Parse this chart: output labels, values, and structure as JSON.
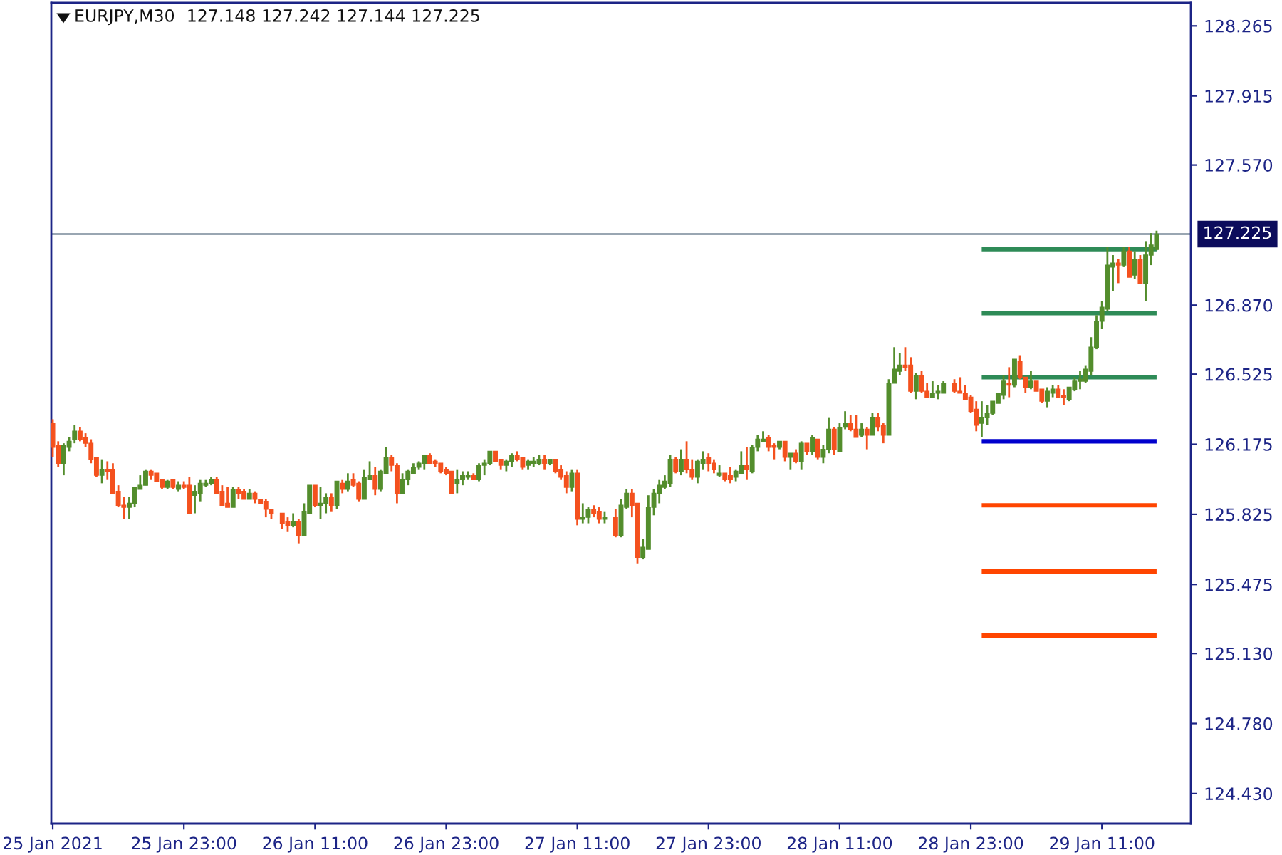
{
  "chart_data": {
    "type": "candlestick",
    "title": "EURJPY,M30",
    "annotations": [
      "127.148 127.242 127.144 127.225"
    ],
    "series": [
      {
        "x": [
          "2021-01-25T11:00",
          "2021-01-25T11:30",
          "2021-01-25T12:00",
          "2021-01-25T12:30",
          "2021-01-25T13:00",
          "2021-01-25T13:30",
          "2021-01-25T14:00",
          "2021-01-25T14:30",
          "2021-01-25T15:00",
          "2021-01-25T15:30",
          "2021-01-25T16:00",
          "2021-01-25T16:30",
          "2021-01-25T17:00",
          "2021-01-25T17:30",
          "2021-01-25T18:00",
          "2021-01-25T18:30",
          "2021-01-25T19:00",
          "2021-01-25T19:30",
          "2021-01-25T20:00",
          "2021-01-25T20:30",
          "2021-01-25T21:00",
          "2021-01-25T21:30",
          "2021-01-25T22:00",
          "2021-01-25T22:30",
          "2021-01-25T23:00",
          "2021-01-25T23:30",
          "2021-01-26T00:00",
          "2021-01-26T00:30",
          "2021-01-26T01:00",
          "2021-01-26T01:30",
          "2021-01-26T02:00",
          "2021-01-26T02:30",
          "2021-01-26T03:00",
          "2021-01-26T03:30",
          "2021-01-26T04:00",
          "2021-01-26T04:30",
          "2021-01-26T05:00",
          "2021-01-26T05:30",
          "2021-01-26T06:00",
          "2021-01-26T06:30",
          "2021-01-26T07:00",
          "2021-01-26T08:00",
          "2021-01-26T08:30",
          "2021-01-26T09:00",
          "2021-01-26T09:30",
          "2021-01-26T10:00",
          "2021-01-26T10:30",
          "2021-01-26T11:00",
          "2021-01-26T11:30",
          "2021-01-26T12:00",
          "2021-01-26T12:30",
          "2021-01-26T13:00",
          "2021-01-26T13:30",
          "2021-01-26T14:00",
          "2021-01-26T14:30",
          "2021-01-26T15:00",
          "2021-01-26T15:30",
          "2021-01-26T16:00",
          "2021-01-26T16:30",
          "2021-01-26T17:00",
          "2021-01-26T17:30",
          "2021-01-26T18:00",
          "2021-01-26T18:30",
          "2021-01-26T19:00",
          "2021-01-26T19:30",
          "2021-01-26T20:00",
          "2021-01-26T20:30",
          "2021-01-26T21:00",
          "2021-01-26T21:30",
          "2021-01-26T22:00",
          "2021-01-26T22:30",
          "2021-01-26T23:00",
          "2021-01-26T23:30",
          "2021-01-27T00:00",
          "2021-01-27T00:30",
          "2021-01-27T01:00",
          "2021-01-27T01:30",
          "2021-01-27T02:00",
          "2021-01-27T02:30",
          "2021-01-27T03:00",
          "2021-01-27T03:30",
          "2021-01-27T04:00",
          "2021-01-27T04:30",
          "2021-01-27T05:00",
          "2021-01-27T05:30",
          "2021-01-27T06:00",
          "2021-01-27T06:30",
          "2021-01-27T07:00",
          "2021-01-27T07:30",
          "2021-01-27T08:00",
          "2021-01-27T08:30",
          "2021-01-27T09:00",
          "2021-01-27T09:30",
          "2021-01-27T10:00",
          "2021-01-27T10:30",
          "2021-01-27T11:00",
          "2021-01-27T11:30",
          "2021-01-27T12:00",
          "2021-01-27T12:30",
          "2021-01-27T13:00",
          "2021-01-27T13:30",
          "2021-01-27T14:30",
          "2021-01-27T15:00",
          "2021-01-27T15:30",
          "2021-01-27T16:00",
          "2021-01-27T16:30",
          "2021-01-27T17:00",
          "2021-01-27T17:30",
          "2021-01-27T18:00",
          "2021-01-27T18:30",
          "2021-01-27T19:00",
          "2021-01-27T19:30",
          "2021-01-27T20:00",
          "2021-01-27T20:30",
          "2021-01-27T21:00",
          "2021-01-27T21:30",
          "2021-01-27T22:00",
          "2021-01-27T22:30",
          "2021-01-27T23:00",
          "2021-01-27T23:30",
          "2021-01-28T00:00",
          "2021-01-28T00:30",
          "2021-01-28T01:00",
          "2021-01-28T01:30",
          "2021-01-28T02:00",
          "2021-01-28T02:30",
          "2021-01-28T03:00",
          "2021-01-28T03:30",
          "2021-01-28T04:00",
          "2021-01-28T04:30",
          "2021-01-28T05:00",
          "2021-01-28T05:30",
          "2021-01-28T06:00",
          "2021-01-28T06:30",
          "2021-01-28T07:00",
          "2021-01-28T07:30",
          "2021-01-28T08:00",
          "2021-01-28T08:30",
          "2021-01-28T09:00",
          "2021-01-28T09:30",
          "2021-01-28T10:00",
          "2021-01-28T10:30",
          "2021-01-28T11:00",
          "2021-01-28T11:30",
          "2021-01-28T12:00",
          "2021-01-28T12:30",
          "2021-01-28T13:00",
          "2021-01-28T13:30",
          "2021-01-28T14:00",
          "2021-01-28T14:30",
          "2021-01-28T15:00",
          "2021-01-28T15:30",
          "2021-01-28T16:00",
          "2021-01-28T16:30",
          "2021-01-28T17:00",
          "2021-01-28T17:30",
          "2021-01-28T18:00",
          "2021-01-28T18:30",
          "2021-01-28T19:00",
          "2021-01-28T19:30",
          "2021-01-28T20:00",
          "2021-01-28T20:30",
          "2021-01-28T21:30",
          "2021-01-28T22:00",
          "2021-01-28T22:30",
          "2021-01-28T23:00",
          "2021-01-28T23:30",
          "2021-01-29T00:00",
          "2021-01-29T00:30",
          "2021-01-29T01:00",
          "2021-01-29T01:30",
          "2021-01-29T02:00",
          "2021-01-29T02:30",
          "2021-01-29T03:00",
          "2021-01-29T03:30",
          "2021-01-29T04:00",
          "2021-01-29T04:30",
          "2021-01-29T05:00",
          "2021-01-29T05:30",
          "2021-01-29T06:00",
          "2021-01-29T06:30",
          "2021-01-29T07:00",
          "2021-01-29T07:30",
          "2021-01-29T08:00",
          "2021-01-29T08:30",
          "2021-01-29T09:00",
          "2021-01-29T09:30",
          "2021-01-29T10:00",
          "2021-01-29T10:30",
          "2021-01-29T11:00",
          "2021-01-29T11:30",
          "2021-01-29T12:00",
          "2021-01-29T12:30",
          "2021-01-29T13:00",
          "2021-01-29T13:30",
          "2021-01-29T14:00",
          "2021-01-29T14:30",
          "2021-01-29T15:00",
          "2021-01-29T15:30",
          "2021-01-29T16:00"
        ],
        "ohlc": [
          [
            126.28,
            126.3,
            126.11,
            126.16
          ],
          [
            126.17,
            126.19,
            126.06,
            126.08
          ],
          [
            126.08,
            126.18,
            126.02,
            126.17
          ],
          [
            126.16,
            126.21,
            126.14,
            126.19
          ],
          [
            126.2,
            126.27,
            126.18,
            126.24
          ],
          [
            126.24,
            126.26,
            126.19,
            126.2
          ],
          [
            126.21,
            126.23,
            126.16,
            126.18
          ],
          [
            126.18,
            126.2,
            126.08,
            126.1
          ],
          [
            126.11,
            126.11,
            126.01,
            126.02
          ],
          [
            126.02,
            126.1,
            125.98,
            126.05
          ],
          [
            126.05,
            126.09,
            126.0,
            126.04
          ],
          [
            126.05,
            126.08,
            125.93,
            125.93
          ],
          [
            125.94,
            125.97,
            125.86,
            125.87
          ],
          [
            125.87,
            125.91,
            125.8,
            125.86
          ],
          [
            125.86,
            125.91,
            125.8,
            125.88
          ],
          [
            125.88,
            125.96,
            125.86,
            125.96
          ],
          [
            125.95,
            126.02,
            125.95,
            125.97
          ],
          [
            125.97,
            126.05,
            125.97,
            126.04
          ],
          [
            126.04,
            126.05,
            126.0,
            126.02
          ],
          [
            126.03,
            126.03,
            125.99,
            125.99
          ],
          [
            126.0,
            126.0,
            125.95,
            125.96
          ],
          [
            125.96,
            126.0,
            125.95,
            125.99
          ],
          [
            126.0,
            126.0,
            125.95,
            125.96
          ],
          [
            125.95,
            125.99,
            125.94,
            125.97
          ],
          [
            125.97,
            125.99,
            125.95,
            125.96
          ],
          [
            125.97,
            126.01,
            125.83,
            125.83
          ],
          [
            125.92,
            125.97,
            125.83,
            125.94
          ],
          [
            125.93,
            126.0,
            125.89,
            125.98
          ],
          [
            125.97,
            126.0,
            125.96,
            125.98
          ],
          [
            125.98,
            126.01,
            125.97,
            126.0
          ],
          [
            126.0,
            126.01,
            125.93,
            125.93
          ],
          [
            125.94,
            125.97,
            125.87,
            125.87
          ],
          [
            125.88,
            125.96,
            125.86,
            125.86
          ],
          [
            125.86,
            125.96,
            125.86,
            125.95
          ],
          [
            125.95,
            125.96,
            125.9,
            125.93
          ],
          [
            125.94,
            125.95,
            125.9,
            125.9
          ],
          [
            125.9,
            125.95,
            125.9,
            125.93
          ],
          [
            125.93,
            125.94,
            125.88,
            125.9
          ],
          [
            125.9,
            125.9,
            125.88,
            125.88
          ],
          [
            125.89,
            125.9,
            125.81,
            125.85
          ],
          [
            125.85,
            125.85,
            125.8,
            125.83
          ],
          [
            125.83,
            125.83,
            125.75,
            125.78
          ],
          [
            125.79,
            125.81,
            125.74,
            125.77
          ],
          [
            125.77,
            125.83,
            125.76,
            125.79
          ],
          [
            125.79,
            125.8,
            125.68,
            125.72
          ],
          [
            125.72,
            125.88,
            125.72,
            125.84
          ],
          [
            125.83,
            125.97,
            125.83,
            125.97
          ],
          [
            125.97,
            125.97,
            125.86,
            125.87
          ],
          [
            125.87,
            125.96,
            125.8,
            125.88
          ],
          [
            125.88,
            125.93,
            125.83,
            125.91
          ],
          [
            125.91,
            125.93,
            125.84,
            125.87
          ],
          [
            125.87,
            125.99,
            125.85,
            125.99
          ],
          [
            125.98,
            126.0,
            125.93,
            125.95
          ],
          [
            125.95,
            126.03,
            125.94,
            125.99
          ],
          [
            126.0,
            126.03,
            125.96,
            125.97
          ],
          [
            125.98,
            125.99,
            125.89,
            125.9
          ],
          [
            125.9,
            126.05,
            125.9,
            126.01
          ],
          [
            126.0,
            126.09,
            126.0,
            126.02
          ],
          [
            126.02,
            126.06,
            125.92,
            125.95
          ],
          [
            125.95,
            126.05,
            125.94,
            126.04
          ],
          [
            126.03,
            126.16,
            126.03,
            126.11
          ],
          [
            126.11,
            126.12,
            126.04,
            126.07
          ],
          [
            126.07,
            126.08,
            125.88,
            125.93
          ],
          [
            125.93,
            126.03,
            125.93,
            126.0
          ],
          [
            126.0,
            126.05,
            125.97,
            126.04
          ],
          [
            126.03,
            126.08,
            126.03,
            126.06
          ],
          [
            126.06,
            126.09,
            126.05,
            126.08
          ],
          [
            126.08,
            126.12,
            126.05,
            126.12
          ],
          [
            126.12,
            126.13,
            126.08,
            126.08
          ],
          [
            126.09,
            126.1,
            126.06,
            126.08
          ],
          [
            126.08,
            126.08,
            126.03,
            126.04
          ],
          [
            126.05,
            126.06,
            126.02,
            126.03
          ],
          [
            126.04,
            126.04,
            125.93,
            125.93
          ],
          [
            125.98,
            126.05,
            125.93,
            126.0
          ],
          [
            126.0,
            126.04,
            125.97,
            126.02
          ],
          [
            126.01,
            126.04,
            126.0,
            126.02
          ],
          [
            126.02,
            126.03,
            126.0,
            126.0
          ],
          [
            126.0,
            126.08,
            125.99,
            126.07
          ],
          [
            126.07,
            126.1,
            126.02,
            126.08
          ],
          [
            126.08,
            126.14,
            126.07,
            126.14
          ],
          [
            126.14,
            126.14,
            126.09,
            126.09
          ],
          [
            126.1,
            126.1,
            126.05,
            126.07
          ],
          [
            126.07,
            126.1,
            126.04,
            126.09
          ],
          [
            126.09,
            126.13,
            126.06,
            126.12
          ],
          [
            126.12,
            126.14,
            126.09,
            126.1
          ],
          [
            126.11,
            126.11,
            126.05,
            126.06
          ],
          [
            126.07,
            126.1,
            126.05,
            126.09
          ],
          [
            126.08,
            126.11,
            126.06,
            126.09
          ],
          [
            126.08,
            126.12,
            126.07,
            126.1
          ],
          [
            126.1,
            126.12,
            126.05,
            126.08
          ],
          [
            126.08,
            126.1,
            126.07,
            126.1
          ],
          [
            126.1,
            126.1,
            126.03,
            126.04
          ],
          [
            126.05,
            126.07,
            126.0,
            126.01
          ],
          [
            126.02,
            126.04,
            125.93,
            125.96
          ],
          [
            125.96,
            126.05,
            125.94,
            126.03
          ],
          [
            126.03,
            126.05,
            125.77,
            125.8
          ],
          [
            125.8,
            125.88,
            125.78,
            125.81
          ],
          [
            125.81,
            125.86,
            125.78,
            125.85
          ],
          [
            125.85,
            125.87,
            125.81,
            125.83
          ],
          [
            125.84,
            125.86,
            125.78,
            125.8
          ],
          [
            125.8,
            125.84,
            125.78,
            125.81
          ],
          [
            125.81,
            125.85,
            125.71,
            125.72
          ],
          [
            125.72,
            125.9,
            125.71,
            125.87
          ],
          [
            125.86,
            125.95,
            125.85,
            125.93
          ],
          [
            125.93,
            125.95,
            125.81,
            125.87
          ],
          [
            125.88,
            125.88,
            125.58,
            125.61
          ],
          [
            125.61,
            125.7,
            125.6,
            125.66
          ],
          [
            125.65,
            125.92,
            125.65,
            125.86
          ],
          [
            125.86,
            125.95,
            125.82,
            125.93
          ],
          [
            125.93,
            126.0,
            125.88,
            125.97
          ],
          [
            125.96,
            126.02,
            125.95,
            125.99
          ],
          [
            125.98,
            126.12,
            125.96,
            126.1
          ],
          [
            126.1,
            126.11,
            126.03,
            126.04
          ],
          [
            126.04,
            126.15,
            126.02,
            126.1
          ],
          [
            126.1,
            126.19,
            126.03,
            126.05
          ],
          [
            126.05,
            126.1,
            126.0,
            126.01
          ],
          [
            126.01,
            126.1,
            125.98,
            126.09
          ],
          [
            126.08,
            126.14,
            126.05,
            126.1
          ],
          [
            126.11,
            126.13,
            126.04,
            126.08
          ],
          [
            126.08,
            126.1,
            126.03,
            126.05
          ],
          [
            126.02,
            126.07,
            126.01,
            126.03
          ],
          [
            126.03,
            126.03,
            125.99,
            126.0
          ],
          [
            126.02,
            126.06,
            125.98,
            126.0
          ],
          [
            126.01,
            126.05,
            125.99,
            126.04
          ],
          [
            126.03,
            126.14,
            126.03,
            126.07
          ],
          [
            126.07,
            126.16,
            126.0,
            126.05
          ],
          [
            126.04,
            126.17,
            126.03,
            126.16
          ],
          [
            126.16,
            126.22,
            126.14,
            126.2
          ],
          [
            126.19,
            126.24,
            126.19,
            126.2
          ],
          [
            126.21,
            126.22,
            126.14,
            126.16
          ],
          [
            126.17,
            126.18,
            126.1,
            126.16
          ],
          [
            126.16,
            126.19,
            126.15,
            126.19
          ],
          [
            126.19,
            126.19,
            126.09,
            126.11
          ],
          [
            126.11,
            126.13,
            126.05,
            126.13
          ],
          [
            126.13,
            126.15,
            126.08,
            126.09
          ],
          [
            126.09,
            126.19,
            126.05,
            126.18
          ],
          [
            126.18,
            126.18,
            126.12,
            126.14
          ],
          [
            126.14,
            126.22,
            126.12,
            126.21
          ],
          [
            126.2,
            126.2,
            126.1,
            126.11
          ],
          [
            126.11,
            126.17,
            126.08,
            126.15
          ],
          [
            126.15,
            126.31,
            126.13,
            126.25
          ],
          [
            126.25,
            126.26,
            126.12,
            126.15
          ],
          [
            126.14,
            126.28,
            126.14,
            126.26
          ],
          [
            126.26,
            126.34,
            126.25,
            126.28
          ],
          [
            126.28,
            126.32,
            126.24,
            126.25
          ],
          [
            126.25,
            126.32,
            126.21,
            126.21
          ],
          [
            126.22,
            126.28,
            126.21,
            126.25
          ],
          [
            126.25,
            126.26,
            126.15,
            126.22
          ],
          [
            126.22,
            126.33,
            126.22,
            126.31
          ],
          [
            126.31,
            126.33,
            126.24,
            126.26
          ],
          [
            126.27,
            126.28,
            126.18,
            126.22
          ],
          [
            126.22,
            126.5,
            126.22,
            126.48
          ],
          [
            126.48,
            126.66,
            126.48,
            126.55
          ],
          [
            126.54,
            126.63,
            126.52,
            126.57
          ],
          [
            126.57,
            126.66,
            126.54,
            126.56
          ],
          [
            126.57,
            126.61,
            126.43,
            126.44
          ],
          [
            126.44,
            126.53,
            126.4,
            126.52
          ],
          [
            126.52,
            126.54,
            126.43,
            126.44
          ],
          [
            126.44,
            126.48,
            126.41,
            126.41
          ],
          [
            126.41,
            126.49,
            126.41,
            126.43
          ],
          [
            126.43,
            126.47,
            126.4,
            126.44
          ],
          [
            126.43,
            126.49,
            126.43,
            126.48
          ],
          [
            126.48,
            126.5,
            126.43,
            126.44
          ],
          [
            126.44,
            126.51,
            126.43,
            126.43
          ],
          [
            126.43,
            126.47,
            126.4,
            126.4
          ],
          [
            126.41,
            126.42,
            126.33,
            126.34
          ],
          [
            126.35,
            126.39,
            126.24,
            126.27
          ],
          [
            126.28,
            126.39,
            126.21,
            126.31
          ],
          [
            126.31,
            126.37,
            126.27,
            126.33
          ],
          [
            126.33,
            126.39,
            126.32,
            126.39
          ],
          [
            126.38,
            126.43,
            126.38,
            126.43
          ],
          [
            126.42,
            126.52,
            126.4,
            126.49
          ],
          [
            126.48,
            126.56,
            126.41,
            126.47
          ],
          [
            126.47,
            126.6,
            126.46,
            126.6
          ],
          [
            126.59,
            126.62,
            126.5,
            126.51
          ],
          [
            126.51,
            126.51,
            126.43,
            126.46
          ],
          [
            126.46,
            126.54,
            126.45,
            126.49
          ],
          [
            126.49,
            126.49,
            126.44,
            126.44
          ],
          [
            126.45,
            126.45,
            126.38,
            126.39
          ],
          [
            126.39,
            126.46,
            126.36,
            126.44
          ],
          [
            126.43,
            126.47,
            126.41,
            126.45
          ],
          [
            126.45,
            126.47,
            126.41,
            126.41
          ],
          [
            126.42,
            126.45,
            126.37,
            126.41
          ],
          [
            126.4,
            126.46,
            126.39,
            126.46
          ],
          [
            126.45,
            126.51,
            126.44,
            126.49
          ],
          [
            126.49,
            126.54,
            126.45,
            126.5
          ],
          [
            126.49,
            126.57,
            126.48,
            126.55
          ],
          [
            126.54,
            126.71,
            126.52,
            126.66
          ],
          [
            126.66,
            126.82,
            126.65,
            126.79
          ],
          [
            126.79,
            126.89,
            126.75,
            126.86
          ],
          [
            126.85,
            127.16,
            126.84,
            127.07
          ],
          [
            127.06,
            127.12,
            126.94,
            127.08
          ],
          [
            127.08,
            127.1,
            126.98,
            127.07
          ],
          [
            127.07,
            127.16,
            127.06,
            127.14
          ],
          [
            127.14,
            127.16,
            127.01,
            127.01
          ],
          [
            127.02,
            127.14,
            127.0,
            127.1
          ],
          [
            127.1,
            127.12,
            126.98,
            126.98
          ],
          [
            126.98,
            127.19,
            126.89,
            127.12
          ],
          [
            127.12,
            127.23,
            127.07,
            127.17
          ],
          [
            127.148,
            127.242,
            127.144,
            127.225
          ]
        ],
        "colors": [
          "#f4511e",
          "#f4511e",
          "#538d2c",
          "#538d2c",
          "#538d2c",
          "#f4511e",
          "#f4511e",
          "#f4511e",
          "#f4511e",
          "#538d2c",
          "#f4511e",
          "#f4511e",
          "#f4511e",
          "#f4511e",
          "#538d2c",
          "#538d2c",
          "#538d2c",
          "#538d2c",
          "#f4511e",
          "#f4511e",
          "#f4511e",
          "#538d2c",
          "#f4511e",
          "#538d2c",
          "#f4511e",
          "#f4511e",
          "#538d2c",
          "#538d2c",
          "#538d2c",
          "#538d2c",
          "#f4511e",
          "#f4511e",
          "#f4511e",
          "#538d2c",
          "#f4511e",
          "#f4511e",
          "#538d2c",
          "#f4511e",
          "#f4511e",
          "#f4511e",
          "#f4511e",
          "#f4511e",
          "#f4511e",
          "#538d2c",
          "#f4511e",
          "#538d2c",
          "#538d2c",
          "#f4511e",
          "#538d2c",
          "#538d2c",
          "#f4511e",
          "#538d2c",
          "#f4511e",
          "#538d2c",
          "#f4511e",
          "#f4511e",
          "#538d2c",
          "#538d2c",
          "#f4511e",
          "#538d2c",
          "#538d2c",
          "#f4511e",
          "#f4511e",
          "#538d2c",
          "#538d2c",
          "#538d2c",
          "#538d2c",
          "#538d2c",
          "#f4511e",
          "#f4511e",
          "#f4511e",
          "#f4511e",
          "#f4511e",
          "#538d2c",
          "#538d2c",
          "#538d2c",
          "#f4511e",
          "#538d2c",
          "#538d2c",
          "#538d2c",
          "#f4511e",
          "#f4511e",
          "#538d2c",
          "#538d2c",
          "#f4511e",
          "#f4511e",
          "#538d2c",
          "#538d2c",
          "#538d2c",
          "#f4511e",
          "#538d2c",
          "#f4511e",
          "#f4511e",
          "#f4511e",
          "#538d2c",
          "#f4511e",
          "#538d2c",
          "#538d2c",
          "#f4511e",
          "#f4511e",
          "#538d2c",
          "#f4511e",
          "#538d2c",
          "#538d2c",
          "#f4511e",
          "#f4511e",
          "#538d2c",
          "#538d2c",
          "#538d2c",
          "#538d2c",
          "#538d2c",
          "#538d2c",
          "#f4511e",
          "#538d2c",
          "#f4511e",
          "#f4511e",
          "#538d2c",
          "#538d2c",
          "#f4511e",
          "#f4511e",
          "#538d2c",
          "#f4511e",
          "#f4511e",
          "#538d2c",
          "#538d2c",
          "#f4511e",
          "#538d2c",
          "#538d2c",
          "#538d2c",
          "#f4511e",
          "#f4511e",
          "#538d2c",
          "#f4511e",
          "#538d2c",
          "#f4511e",
          "#538d2c",
          "#f4511e",
          "#538d2c",
          "#f4511e",
          "#538d2c",
          "#538d2c",
          "#f4511e",
          "#538d2c",
          "#538d2c",
          "#f4511e",
          "#f4511e",
          "#538d2c",
          "#f4511e",
          "#538d2c",
          "#f4511e",
          "#f4511e",
          "#538d2c",
          "#538d2c",
          "#538d2c",
          "#f4511e",
          "#f4511e",
          "#538d2c",
          "#f4511e",
          "#f4511e",
          "#538d2c",
          "#538d2c",
          "#538d2c",
          "#f4511e",
          "#f4511e",
          "#f4511e",
          "#f4511e",
          "#f4511e",
          "#538d2c",
          "#538d2c",
          "#538d2c",
          "#538d2c",
          "#538d2c",
          "#f4511e",
          "#538d2c",
          "#f4511e",
          "#f4511e",
          "#538d2c",
          "#f4511e",
          "#f4511e",
          "#538d2c",
          "#538d2c",
          "#f4511e",
          "#f4511e",
          "#538d2c",
          "#538d2c",
          "#538d2c",
          "#538d2c",
          "#538d2c",
          "#538d2c",
          "#538d2c",
          "#538d2c",
          "#538d2c",
          "#f4511e",
          "#538d2c",
          "#f4511e",
          "#538d2c",
          "#f4511e",
          "#538d2c",
          "#538d2c",
          "#538d2c"
        ]
      },
      {
        "type": "line",
        "x": [
          "2021-01-29T00:00",
          "2021-01-29T16:00"
        ],
        "values": [
          127.15,
          127.15
        ],
        "color": "#2e8b57"
      },
      {
        "type": "line",
        "x": [
          "2021-01-29T00:00",
          "2021-01-29T16:00"
        ],
        "values": [
          126.83,
          126.83
        ],
        "color": "#2e8b57"
      },
      {
        "type": "line",
        "x": [
          "2021-01-29T00:00",
          "2021-01-29T16:00"
        ],
        "values": [
          126.51,
          126.51
        ],
        "color": "#2e8b57"
      },
      {
        "type": "line",
        "x": [
          "2021-01-29T00:00",
          "2021-01-29T16:00"
        ],
        "values": [
          126.19,
          126.19
        ],
        "color": "#0000cd"
      },
      {
        "type": "line",
        "x": [
          "2021-01-29T00:00",
          "2021-01-29T16:00"
        ],
        "values": [
          125.87,
          125.87
        ],
        "color": "#ff4500"
      },
      {
        "type": "line",
        "x": [
          "2021-01-29T00:00",
          "2021-01-29T16:00"
        ],
        "values": [
          125.54,
          125.54
        ],
        "color": "#ff4500"
      },
      {
        "type": "line",
        "x": [
          "2021-01-29T00:00",
          "2021-01-29T16:00"
        ],
        "values": [
          125.22,
          125.22
        ],
        "color": "#ff4500"
      }
    ],
    "ref_lines": [
      {
        "axis": "y",
        "value": 127.225,
        "label": "127.225",
        "color": "#778899"
      }
    ],
    "xlim": [
      "2021-01-25T10:52",
      "2021-01-29T19:08"
    ],
    "xticks": [
      {
        "value": "2021-01-25T11:00",
        "label": "25 Jan 2021"
      },
      {
        "value": "2021-01-25T23:00",
        "label": "25 Jan 23:00"
      },
      {
        "value": "2021-01-26T11:00",
        "label": "26 Jan 11:00"
      },
      {
        "value": "2021-01-26T23:00",
        "label": "26 Jan 23:00"
      },
      {
        "value": "2021-01-27T11:00",
        "label": "27 Jan 11:00"
      },
      {
        "value": "2021-01-27T23:00",
        "label": "27 Jan 23:00"
      },
      {
        "value": "2021-01-28T11:00",
        "label": "28 Jan 11:00"
      },
      {
        "value": "2021-01-28T23:00",
        "label": "28 Jan 23:00"
      },
      {
        "value": "2021-01-29T11:00",
        "label": "29 Jan 11:00"
      }
    ],
    "ylim": [
      124.28,
      128.38
    ],
    "yticks": [
      128.265,
      127.915,
      {
        "value": 127.57,
        "label": "127.570"
      },
      {
        "value": 126.87,
        "label": "126.870"
      },
      126.525,
      126.175,
      125.825,
      125.475,
      {
        "value": 125.13,
        "label": "125.130"
      },
      {
        "value": 124.78,
        "label": "124.780"
      },
      {
        "value": 124.43,
        "label": "124.430"
      }
    ]
  }
}
